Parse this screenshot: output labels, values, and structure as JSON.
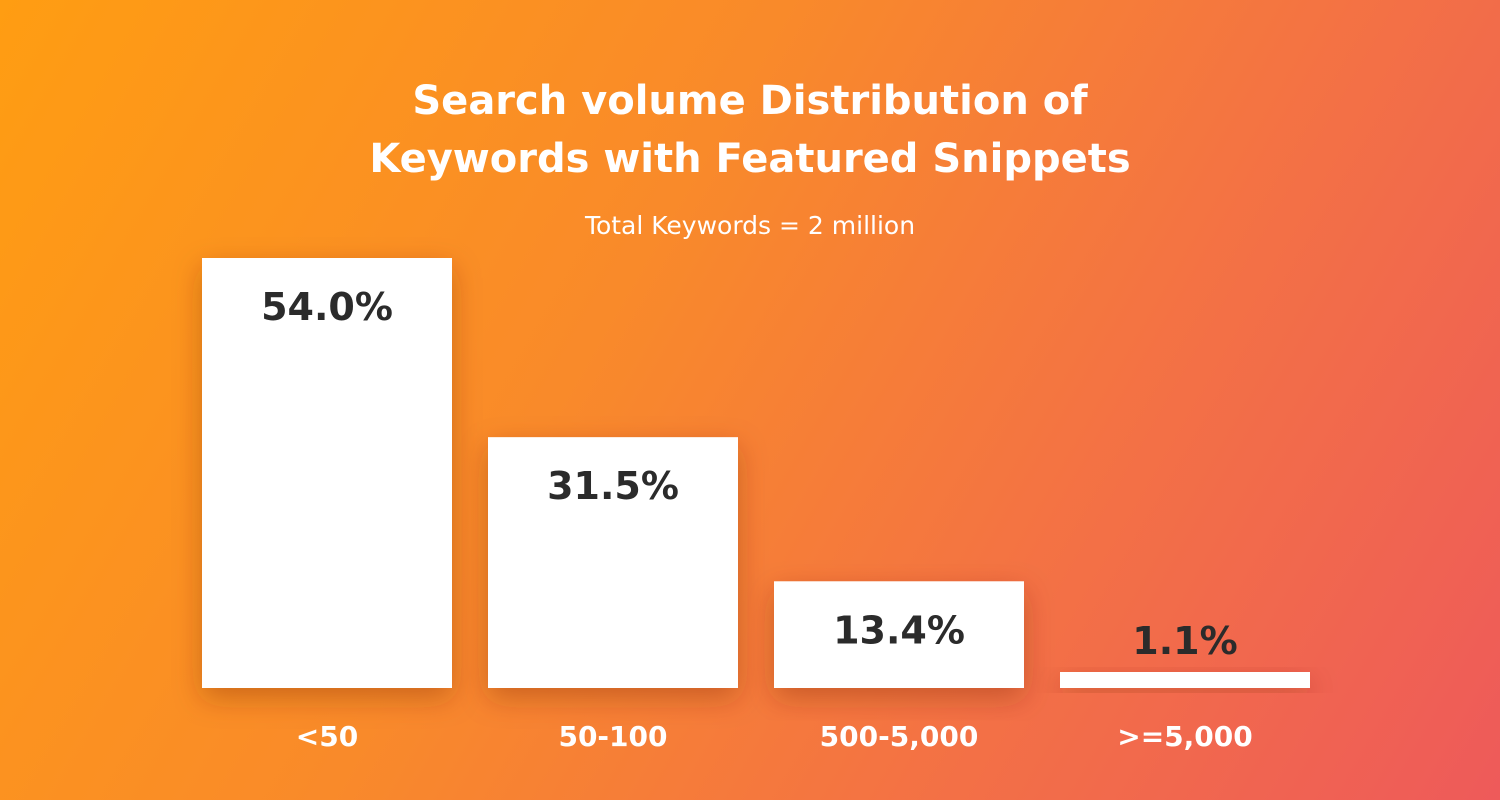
{
  "chart_data": {
    "type": "bar",
    "title_lines": [
      "Search volume Distribution of",
      "Keywords with Featured Snippets"
    ],
    "subtitle": "Total Keywords = 2 million",
    "categories": [
      "<50",
      "50-100",
      "500-5,000",
      ">=5,000"
    ],
    "values": [
      54.0,
      31.5,
      13.4,
      1.1
    ],
    "value_labels": [
      "54.0%",
      "31.5%",
      "13.4%",
      "1.1%"
    ],
    "ylim": [
      0,
      54.0
    ],
    "grid": false,
    "legend": "none",
    "bar_color": "#ffffff",
    "label_color": "#2b2b2b"
  }
}
